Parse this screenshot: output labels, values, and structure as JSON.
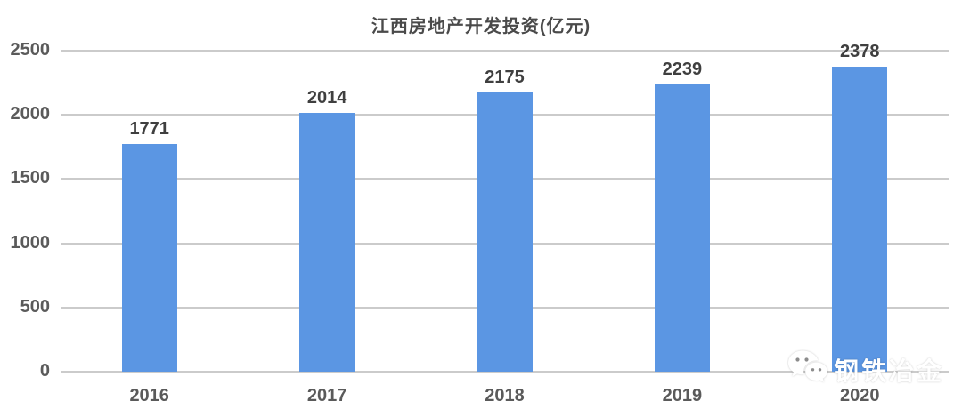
{
  "chart_data": {
    "type": "bar",
    "title": "江西房地产开发投资(亿元)",
    "categories": [
      "2016",
      "2017",
      "2018",
      "2019",
      "2020"
    ],
    "values": [
      1771,
      2014,
      2175,
      2239,
      2378
    ],
    "xlabel": "",
    "ylabel": "",
    "ylim": [
      0,
      2500
    ],
    "yticks": [
      0,
      500,
      1000,
      1500,
      2000,
      2500
    ],
    "grid": "horizontal",
    "legend": "none",
    "bar_color": "#5B96E3",
    "value_labels_shown": true
  },
  "watermark": {
    "icon": "wechat-icon",
    "text": "钢铁冶金",
    "color": "#ffffff"
  },
  "colors": {
    "background": "#ffffff",
    "bar": "#5B96E3",
    "gridline": "#cbcbcb",
    "title_text": "#4a4a4a",
    "value_label_text": "#3f3f3f",
    "axis_label_text": "#5a5a5a"
  }
}
